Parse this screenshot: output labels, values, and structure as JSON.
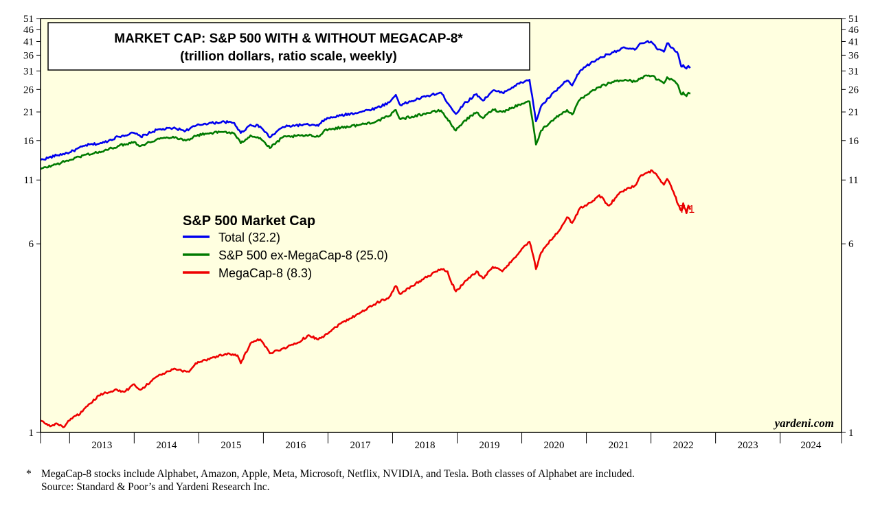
{
  "chart_data": {
    "type": "line",
    "title": "MARKET CAP: S&P 500 WITH & WITHOUT MEGACAP-8*",
    "subtitle": "(trillion dollars, ratio scale, weekly)",
    "y_scale": "log",
    "ylim": [
      1,
      51
    ],
    "y_ticks": [
      1,
      6,
      11,
      16,
      21,
      26,
      31,
      36,
      41,
      46,
      51
    ],
    "x_range": [
      2012.55,
      2024.95
    ],
    "x_categories": [
      "2013",
      "2014",
      "2015",
      "2016",
      "2017",
      "2018",
      "2019",
      "2020",
      "2021",
      "2022",
      "2023",
      "2024"
    ],
    "legend_title": "S&P 500 Market Cap",
    "series": [
      {
        "name": "Total (32.2)",
        "color": "#0000ee",
        "points": [
          [
            2012.55,
            13.3
          ],
          [
            2012.8,
            13.9
          ],
          [
            2013.0,
            14.3
          ],
          [
            2013.25,
            15.3
          ],
          [
            2013.5,
            15.6
          ],
          [
            2013.75,
            16.6
          ],
          [
            2014.0,
            17.2
          ],
          [
            2014.1,
            16.6
          ],
          [
            2014.35,
            17.7
          ],
          [
            2014.6,
            18.0
          ],
          [
            2014.8,
            17.6
          ],
          [
            2014.95,
            18.4
          ],
          [
            2015.1,
            18.8
          ],
          [
            2015.4,
            19.1
          ],
          [
            2015.55,
            18.9
          ],
          [
            2015.65,
            17.2
          ],
          [
            2015.8,
            18.6
          ],
          [
            2015.95,
            18.3
          ],
          [
            2016.1,
            16.5
          ],
          [
            2016.3,
            18.2
          ],
          [
            2016.5,
            18.5
          ],
          [
            2016.7,
            18.6
          ],
          [
            2016.85,
            18.4
          ],
          [
            2016.95,
            19.6
          ],
          [
            2017.2,
            20.3
          ],
          [
            2017.5,
            21.0
          ],
          [
            2017.75,
            21.8
          ],
          [
            2017.95,
            23.0
          ],
          [
            2018.05,
            24.7
          ],
          [
            2018.12,
            22.4
          ],
          [
            2018.3,
            23.3
          ],
          [
            2018.55,
            24.5
          ],
          [
            2018.75,
            25.2
          ],
          [
            2018.9,
            22.0
          ],
          [
            2018.98,
            20.6
          ],
          [
            2019.1,
            22.6
          ],
          [
            2019.3,
            24.9
          ],
          [
            2019.4,
            23.4
          ],
          [
            2019.55,
            25.7
          ],
          [
            2019.7,
            25.2
          ],
          [
            2019.85,
            26.5
          ],
          [
            2020.0,
            27.8
          ],
          [
            2020.12,
            28.5
          ],
          [
            2020.18,
            22.5
          ],
          [
            2020.22,
            19.2
          ],
          [
            2020.3,
            22.2
          ],
          [
            2020.45,
            24.5
          ],
          [
            2020.6,
            26.8
          ],
          [
            2020.7,
            28.3
          ],
          [
            2020.78,
            27.0
          ],
          [
            2020.9,
            31.0
          ],
          [
            2021.0,
            32.5
          ],
          [
            2021.2,
            35.0
          ],
          [
            2021.4,
            37.0
          ],
          [
            2021.6,
            38.6
          ],
          [
            2021.75,
            37.9
          ],
          [
            2021.85,
            40.3
          ],
          [
            2021.95,
            41.2
          ],
          [
            2022.02,
            40.5
          ],
          [
            2022.1,
            38.0
          ],
          [
            2022.2,
            37.2
          ],
          [
            2022.25,
            40.3
          ],
          [
            2022.35,
            38.3
          ],
          [
            2022.42,
            36.3
          ],
          [
            2022.47,
            32.3
          ],
          [
            2022.5,
            32.8
          ],
          [
            2022.55,
            31.7
          ],
          [
            2022.58,
            32.5
          ],
          [
            2022.61,
            32.2
          ]
        ]
      },
      {
        "name": "S&P 500 ex-MegaCap-8 (25.0)",
        "color": "#007a00",
        "points": [
          [
            2012.55,
            12.2
          ],
          [
            2012.8,
            12.8
          ],
          [
            2013.0,
            13.3
          ],
          [
            2013.25,
            14.0
          ],
          [
            2013.5,
            14.4
          ],
          [
            2013.75,
            15.2
          ],
          [
            2014.0,
            15.8
          ],
          [
            2014.1,
            15.2
          ],
          [
            2014.35,
            16.2
          ],
          [
            2014.6,
            16.6
          ],
          [
            2014.8,
            16.0
          ],
          [
            2014.95,
            16.7
          ],
          [
            2015.1,
            17.1
          ],
          [
            2015.4,
            17.4
          ],
          [
            2015.55,
            17.1
          ],
          [
            2015.65,
            15.6
          ],
          [
            2015.8,
            16.8
          ],
          [
            2015.95,
            16.4
          ],
          [
            2016.1,
            14.9
          ],
          [
            2016.3,
            16.5
          ],
          [
            2016.5,
            16.7
          ],
          [
            2016.7,
            16.8
          ],
          [
            2016.85,
            16.6
          ],
          [
            2016.95,
            17.7
          ],
          [
            2017.2,
            18.1
          ],
          [
            2017.5,
            18.6
          ],
          [
            2017.75,
            19.2
          ],
          [
            2017.95,
            20.2
          ],
          [
            2018.05,
            21.4
          ],
          [
            2018.12,
            19.6
          ],
          [
            2018.3,
            20.1
          ],
          [
            2018.55,
            20.8
          ],
          [
            2018.75,
            21.3
          ],
          [
            2018.9,
            18.8
          ],
          [
            2018.98,
            17.6
          ],
          [
            2019.1,
            19.2
          ],
          [
            2019.3,
            20.9
          ],
          [
            2019.4,
            19.8
          ],
          [
            2019.55,
            21.5
          ],
          [
            2019.7,
            21.0
          ],
          [
            2019.85,
            21.9
          ],
          [
            2020.0,
            22.7
          ],
          [
            2020.12,
            23.2
          ],
          [
            2020.18,
            18.3
          ],
          [
            2020.22,
            15.4
          ],
          [
            2020.3,
            17.6
          ],
          [
            2020.45,
            19.2
          ],
          [
            2020.6,
            20.5
          ],
          [
            2020.7,
            21.4
          ],
          [
            2020.78,
            20.5
          ],
          [
            2020.9,
            23.6
          ],
          [
            2021.0,
            24.6
          ],
          [
            2021.2,
            26.6
          ],
          [
            2021.4,
            27.9
          ],
          [
            2021.6,
            28.5
          ],
          [
            2021.75,
            28.0
          ],
          [
            2021.85,
            29.1
          ],
          [
            2021.95,
            29.6
          ],
          [
            2022.02,
            29.6
          ],
          [
            2022.1,
            28.5
          ],
          [
            2022.2,
            27.6
          ],
          [
            2022.25,
            29.2
          ],
          [
            2022.35,
            28.3
          ],
          [
            2022.42,
            27.0
          ],
          [
            2022.47,
            24.8
          ],
          [
            2022.5,
            25.3
          ],
          [
            2022.55,
            24.4
          ],
          [
            2022.58,
            25.2
          ],
          [
            2022.61,
            25.0
          ]
        ]
      },
      {
        "name": "MegaCap-8 (8.3)",
        "color": "#ee0000",
        "points": [
          [
            2012.55,
            1.12
          ],
          [
            2012.7,
            1.06
          ],
          [
            2012.8,
            1.09
          ],
          [
            2012.9,
            1.05
          ],
          [
            2013.0,
            1.12
          ],
          [
            2013.2,
            1.22
          ],
          [
            2013.45,
            1.42
          ],
          [
            2013.7,
            1.5
          ],
          [
            2013.85,
            1.47
          ],
          [
            2014.0,
            1.58
          ],
          [
            2014.1,
            1.5
          ],
          [
            2014.35,
            1.7
          ],
          [
            2014.6,
            1.82
          ],
          [
            2014.85,
            1.78
          ],
          [
            2014.95,
            1.93
          ],
          [
            2015.2,
            2.03
          ],
          [
            2015.45,
            2.12
          ],
          [
            2015.6,
            2.08
          ],
          [
            2015.65,
            1.93
          ],
          [
            2015.8,
            2.33
          ],
          [
            2015.95,
            2.42
          ],
          [
            2016.1,
            2.12
          ],
          [
            2016.3,
            2.22
          ],
          [
            2016.5,
            2.32
          ],
          [
            2016.7,
            2.52
          ],
          [
            2016.85,
            2.42
          ],
          [
            2016.95,
            2.52
          ],
          [
            2017.2,
            2.82
          ],
          [
            2017.5,
            3.12
          ],
          [
            2017.75,
            3.42
          ],
          [
            2017.95,
            3.62
          ],
          [
            2018.05,
            4.02
          ],
          [
            2018.12,
            3.72
          ],
          [
            2018.3,
            4.02
          ],
          [
            2018.55,
            4.42
          ],
          [
            2018.75,
            4.72
          ],
          [
            2018.85,
            4.62
          ],
          [
            2018.9,
            4.22
          ],
          [
            2018.98,
            3.82
          ],
          [
            2019.1,
            4.12
          ],
          [
            2019.3,
            4.62
          ],
          [
            2019.4,
            4.32
          ],
          [
            2019.55,
            4.82
          ],
          [
            2019.7,
            4.62
          ],
          [
            2019.85,
            5.12
          ],
          [
            2020.0,
            5.72
          ],
          [
            2020.12,
            6.12
          ],
          [
            2020.18,
            5.32
          ],
          [
            2020.22,
            4.72
          ],
          [
            2020.3,
            5.52
          ],
          [
            2020.45,
            6.22
          ],
          [
            2020.6,
            6.92
          ],
          [
            2020.7,
            7.72
          ],
          [
            2020.78,
            7.32
          ],
          [
            2020.9,
            8.42
          ],
          [
            2021.0,
            8.62
          ],
          [
            2021.2,
            9.52
          ],
          [
            2021.35,
            8.62
          ],
          [
            2021.5,
            9.62
          ],
          [
            2021.65,
            10.22
          ],
          [
            2021.75,
            10.42
          ],
          [
            2021.85,
            11.52
          ],
          [
            2021.95,
            11.82
          ],
          [
            2022.02,
            12.02
          ],
          [
            2022.1,
            11.42
          ],
          [
            2022.2,
            10.52
          ],
          [
            2022.25,
            11.12
          ],
          [
            2022.35,
            9.82
          ],
          [
            2022.42,
            8.72
          ],
          [
            2022.47,
            8.22
          ],
          [
            2022.5,
            8.82
          ],
          [
            2022.55,
            8.02
          ],
          [
            2022.58,
            8.62
          ],
          [
            2022.61,
            8.3
          ]
        ]
      }
    ],
    "annotations": [
      {
        "text": "7/1",
        "x": 2022.61,
        "y": 8.3,
        "color": "#ee0000"
      }
    ],
    "watermark": "yardeni.com"
  },
  "footnote": {
    "marker": "*",
    "line1": "MegaCap-8 stocks include Alphabet, Amazon, Apple, Meta, Microsoft, Netflix, NVIDIA, and Tesla. Both classes of Alphabet are included.",
    "line2": "Source: Standard & Poor’s and Yardeni Research Inc."
  },
  "colors": {
    "plot_background": "#ffffe0"
  }
}
